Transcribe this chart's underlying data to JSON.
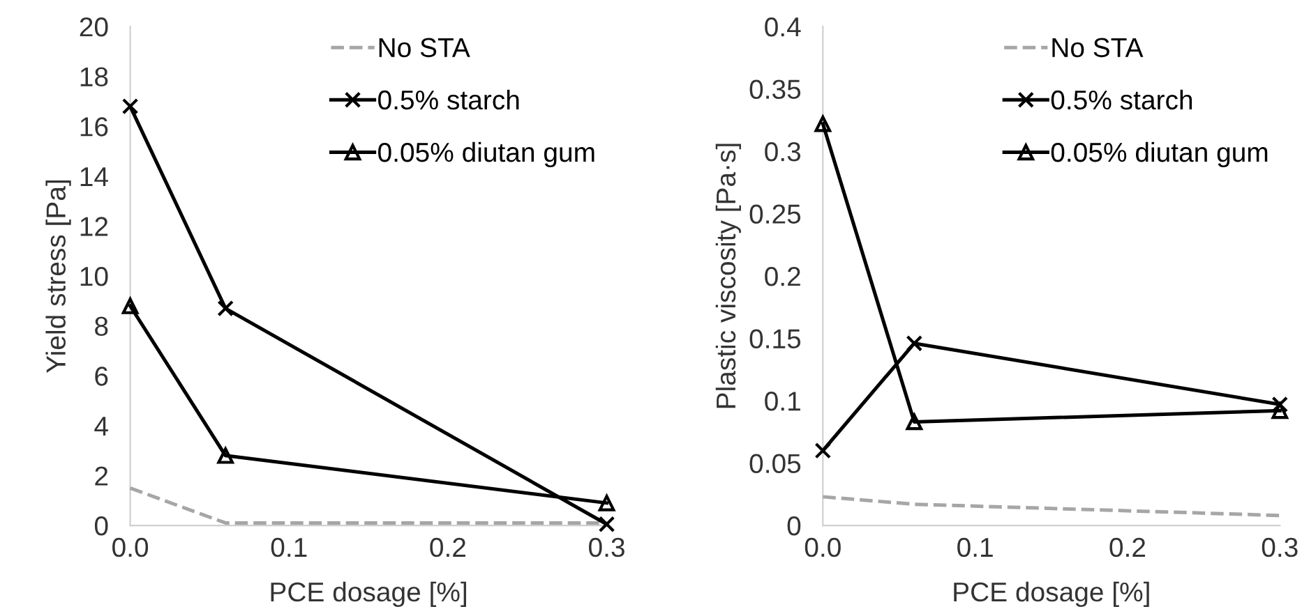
{
  "chart_data": [
    {
      "type": "line",
      "xlabel": "PCE dosage [%]",
      "ylabel": "Yield stress [Pa]",
      "x": [
        0,
        0.06,
        0.3
      ],
      "xlim": [
        0,
        0.3
      ],
      "xticks": [
        {
          "value": 0,
          "label": "0.0"
        },
        0.1,
        0.2,
        0.3
      ],
      "ylim": [
        0,
        20
      ],
      "yticks": [
        0,
        2,
        4,
        6,
        8,
        10,
        12,
        14,
        16,
        18,
        20
      ],
      "grid": false,
      "legend": "top right",
      "series": [
        {
          "name": "No STA",
          "color": "#a6a6a6",
          "values": [
            1.5,
            0.1,
            0.1
          ],
          "marker": "none",
          "line_style": "dashed"
        },
        {
          "name": "0.5% starch",
          "color": "#000000",
          "values": [
            16.8,
            8.7,
            0.05
          ],
          "marker": "cross",
          "line_style": "solid"
        },
        {
          "name": "0.05% diutan gum",
          "color": "#000000",
          "values": [
            8.8,
            2.8,
            0.9
          ],
          "marker": "triangle",
          "line_style": "solid"
        }
      ]
    },
    {
      "type": "line",
      "xlabel": "PCE dosage [%]",
      "ylabel": "Plastic viscosity [Pa·s]",
      "x": [
        0,
        0.06,
        0.3
      ],
      "xlim": [
        0,
        0.3
      ],
      "xticks": [
        {
          "value": 0,
          "label": "0.0"
        },
        0.1,
        0.2,
        0.3
      ],
      "ylim": [
        0,
        0.4
      ],
      "yticks": [
        0,
        0.05,
        0.1,
        0.15,
        0.2,
        0.25,
        0.3,
        0.35,
        0.4
      ],
      "grid": false,
      "legend": "top right",
      "series": [
        {
          "name": "No STA",
          "color": "#a6a6a6",
          "values": [
            0.023,
            0.017,
            0.008
          ],
          "marker": "none",
          "line_style": "dashed"
        },
        {
          "name": "0.5% starch",
          "color": "#000000",
          "values": [
            0.06,
            0.146,
            0.097
          ],
          "marker": "cross",
          "line_style": "solid"
        },
        {
          "name": "0.05% diutan gum",
          "color": "#000000",
          "values": [
            0.322,
            0.083,
            0.092
          ],
          "marker": "triangle",
          "line_style": "solid"
        }
      ]
    }
  ]
}
